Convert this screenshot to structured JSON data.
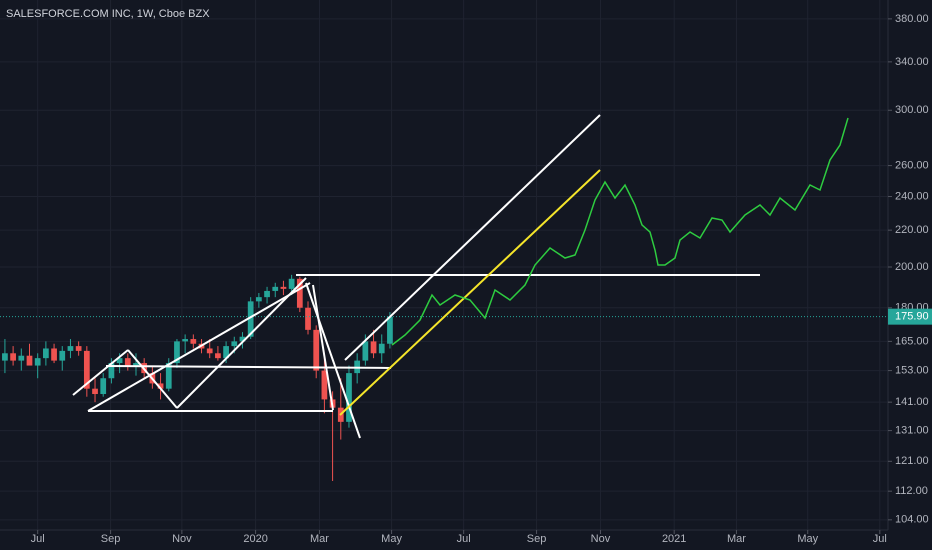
{
  "chart_data": {
    "type": "candlestick",
    "title": "SALESFORCE.COM INC, 1W, Cboe BZX",
    "log_scale": true,
    "grid": true,
    "up_color": "#26a69a",
    "down_color": "#ef5350",
    "x": [
      -4,
      -3,
      -2,
      -1,
      0,
      1,
      2,
      3,
      4,
      5,
      6,
      7,
      8,
      9,
      10,
      11,
      12,
      13,
      14,
      15,
      16,
      17,
      18,
      19,
      20,
      21,
      22,
      23,
      24,
      25,
      26,
      27,
      28,
      29,
      30,
      31,
      32,
      33,
      34,
      35,
      36,
      37,
      38,
      39,
      40,
      41,
      42,
      43
    ],
    "open": [
      157,
      160,
      157,
      159,
      155,
      158,
      162,
      157,
      161,
      163,
      161,
      146,
      144,
      150,
      156,
      158,
      155,
      156,
      152,
      148,
      146,
      156,
      165,
      166,
      164,
      162,
      160,
      158,
      163,
      165,
      167,
      183,
      185,
      188,
      190,
      189,
      194,
      180,
      170,
      153,
      142,
      139,
      134,
      152,
      157,
      165,
      160,
      164
    ],
    "high": [
      166,
      163,
      162,
      164,
      160,
      165,
      164,
      163,
      166,
      165,
      163,
      150,
      152,
      158,
      160,
      160,
      160,
      158,
      155,
      152,
      158,
      166,
      168,
      168,
      166,
      166,
      163,
      165,
      167,
      169,
      185,
      187,
      190,
      192,
      193,
      196,
      195,
      183,
      172,
      158,
      145,
      150,
      155,
      160,
      168,
      170,
      168,
      178
    ],
    "low": [
      152,
      155,
      153,
      156,
      150,
      155,
      156,
      153,
      158,
      159,
      143,
      141,
      143,
      148,
      152,
      153,
      151,
      150,
      146,
      142,
      145,
      154,
      160,
      162,
      160,
      158,
      157,
      156,
      160,
      162,
      166,
      180,
      182,
      185,
      186,
      186,
      178,
      168,
      150,
      137,
      115,
      128,
      132,
      148,
      155,
      158,
      156,
      162
    ],
    "close": [
      160,
      157,
      159,
      155,
      158,
      162,
      157,
      161,
      163,
      161,
      146,
      144,
      150,
      156,
      158,
      155,
      156,
      152,
      148,
      146,
      156,
      165,
      166,
      164,
      162,
      160,
      158,
      163,
      165,
      167,
      183,
      185,
      188,
      190,
      189,
      194,
      180,
      170,
      153,
      142,
      139,
      134,
      152,
      157,
      165,
      160,
      164,
      175.9
    ],
    "last_price": {
      "value": 175.9,
      "label": "175.90"
    },
    "xlim": [
      -4.6,
      103.8
    ],
    "xticks": [
      {
        "value": 0,
        "label": "Jul"
      },
      {
        "value": 8.9,
        "label": "Sep"
      },
      {
        "value": 17.6,
        "label": "Nov"
      },
      {
        "value": 26.6,
        "label": "2020"
      },
      {
        "value": 34.4,
        "label": "Mar"
      },
      {
        "value": 43.2,
        "label": "May"
      },
      {
        "value": 52,
        "label": "Jul"
      },
      {
        "value": 60.9,
        "label": "Sep"
      },
      {
        "value": 68.7,
        "label": "Nov"
      },
      {
        "value": 77.7,
        "label": "2021"
      },
      {
        "value": 85.3,
        "label": "Mar"
      },
      {
        "value": 94,
        "label": "May"
      },
      {
        "value": 102.8,
        "label": "Jul"
      }
    ],
    "ylim": [
      101.3,
      399
    ],
    "yticks": [
      {
        "value": 104,
        "label": "104.00"
      },
      {
        "value": 112,
        "label": "112.00"
      },
      {
        "value": 121,
        "label": "121.00"
      },
      {
        "value": 131,
        "label": "131.00"
      },
      {
        "value": 141,
        "label": "141.00"
      },
      {
        "value": 153,
        "label": "153.00"
      },
      {
        "value": 165,
        "label": "165.00"
      },
      {
        "value": 180,
        "label": "180.00"
      },
      {
        "value": 200,
        "label": "200.00"
      },
      {
        "value": 220,
        "label": "220.00"
      },
      {
        "value": 240,
        "label": "240.00"
      },
      {
        "value": 260,
        "label": "260.00"
      },
      {
        "value": 300,
        "label": "300.00"
      },
      {
        "value": 340,
        "label": "340.00"
      },
      {
        "value": 380,
        "label": "380.00"
      }
    ]
  }
}
